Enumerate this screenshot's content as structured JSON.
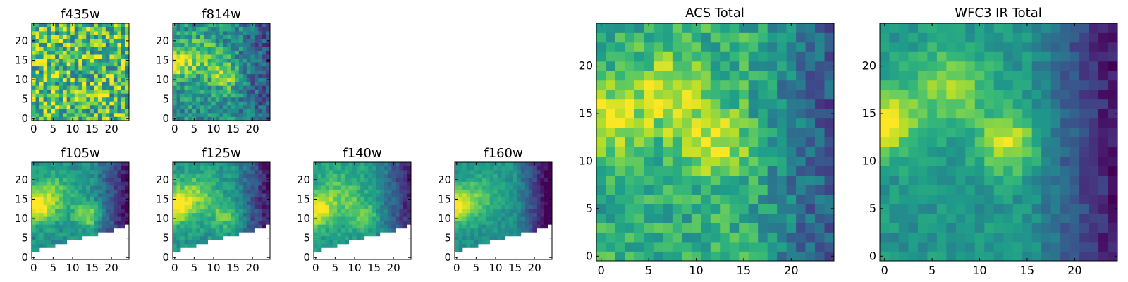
{
  "chart_data": [
    {
      "type": "heatmap",
      "title": "f435w",
      "size": 25,
      "xticks": [
        0,
        5,
        10,
        15,
        20
      ],
      "yticks": [
        0,
        5,
        10,
        15,
        20
      ],
      "xlim": [
        -0.5,
        24.5
      ],
      "ylim": [
        -0.5,
        24.5
      ],
      "colormap": "viridis",
      "masked_lower_right": false,
      "field": {
        "base": 0.7,
        "noise": 0.34,
        "blobs": [],
        "edge_drop": 0.0
      }
    },
    {
      "type": "heatmap",
      "title": "f814w",
      "size": 25,
      "xticks": [
        0,
        5,
        10,
        15,
        20
      ],
      "yticks": [
        0,
        5,
        10,
        15,
        20
      ],
      "xlim": [
        -0.5,
        24.5
      ],
      "ylim": [
        -0.5,
        24.5
      ],
      "colormap": "viridis",
      "masked_lower_right": false,
      "field": {
        "base": 0.5,
        "noise": 0.2,
        "blobs": [
          {
            "x": 0,
            "y": 14,
            "a": 0.45,
            "s": 2.6
          },
          {
            "x": 6,
            "y": 16,
            "a": 0.3,
            "s": 3.5
          },
          {
            "x": 13,
            "y": 11,
            "a": 0.35,
            "s": 2.5
          }
        ],
        "edge_drop": 0.25
      }
    },
    {
      "type": "heatmap",
      "title": "f105w",
      "size": 25,
      "xticks": [
        0,
        5,
        10,
        15,
        20
      ],
      "yticks": [
        0,
        5,
        10,
        15,
        20
      ],
      "xlim": [
        -0.5,
        24.5
      ],
      "ylim": [
        -0.5,
        24.5
      ],
      "colormap": "viridis",
      "masked_lower_right": true,
      "field": {
        "base": 0.5,
        "noise": 0.1,
        "blobs": [
          {
            "x": 0,
            "y": 13,
            "a": 0.5,
            "s": 2.8
          },
          {
            "x": 5,
            "y": 16,
            "a": 0.28,
            "s": 4.0
          },
          {
            "x": 14,
            "y": 11,
            "a": 0.35,
            "s": 2.2
          }
        ],
        "edge_drop": 0.45
      }
    },
    {
      "type": "heatmap",
      "title": "f125w",
      "size": 25,
      "xticks": [
        0,
        5,
        10,
        15,
        20
      ],
      "yticks": [
        0,
        5,
        10,
        15,
        20
      ],
      "xlim": [
        -0.5,
        24.5
      ],
      "ylim": [
        -0.5,
        24.5
      ],
      "colormap": "viridis",
      "masked_lower_right": true,
      "field": {
        "base": 0.52,
        "noise": 0.1,
        "blobs": [
          {
            "x": 0,
            "y": 13,
            "a": 0.48,
            "s": 2.8
          },
          {
            "x": 5,
            "y": 16,
            "a": 0.28,
            "s": 4.0
          },
          {
            "x": 13,
            "y": 11,
            "a": 0.22,
            "s": 2.5
          }
        ],
        "edge_drop": 0.45
      }
    },
    {
      "type": "heatmap",
      "title": "f140w",
      "size": 25,
      "xticks": [
        0,
        5,
        10,
        15,
        20
      ],
      "yticks": [
        0,
        5,
        10,
        15,
        20
      ],
      "xlim": [
        -0.5,
        24.5
      ],
      "ylim": [
        -0.5,
        24.5
      ],
      "colormap": "viridis",
      "masked_lower_right": true,
      "field": {
        "base": 0.55,
        "noise": 0.09,
        "blobs": [
          {
            "x": 0,
            "y": 12,
            "a": 0.45,
            "s": 2.8
          },
          {
            "x": 6,
            "y": 16,
            "a": 0.22,
            "s": 4.0
          },
          {
            "x": 12,
            "y": 11,
            "a": 0.2,
            "s": 2.5
          }
        ],
        "edge_drop": 0.45
      }
    },
    {
      "type": "heatmap",
      "title": "f160w",
      "size": 25,
      "xticks": [
        0,
        5,
        10,
        15,
        20
      ],
      "yticks": [
        0,
        5,
        10,
        15,
        20
      ],
      "xlim": [
        -0.5,
        24.5
      ],
      "ylim": [
        -0.5,
        24.5
      ],
      "colormap": "viridis",
      "masked_lower_right": true,
      "field": {
        "base": 0.5,
        "noise": 0.08,
        "blobs": [
          {
            "x": 0,
            "y": 13,
            "a": 0.5,
            "s": 3.0
          },
          {
            "x": 6,
            "y": 16,
            "a": 0.22,
            "s": 4.0
          }
        ],
        "edge_drop": 0.55
      }
    },
    {
      "type": "heatmap",
      "title": "ACS Total",
      "size": 25,
      "xticks": [
        0,
        5,
        10,
        15,
        20
      ],
      "yticks": [
        0,
        5,
        10,
        15,
        20
      ],
      "xlim": [
        -0.5,
        24.5
      ],
      "ylim": [
        -0.5,
        24.5
      ],
      "colormap": "viridis",
      "masked_lower_right": false,
      "field": {
        "base": 0.62,
        "noise": 0.16,
        "blobs": [
          {
            "x": 0,
            "y": 14,
            "a": 0.35,
            "s": 2.5
          },
          {
            "x": 7,
            "y": 17,
            "a": 0.3,
            "s": 3.0
          },
          {
            "x": 12,
            "y": 12,
            "a": 0.3,
            "s": 2.5
          }
        ],
        "edge_drop": 0.35
      }
    },
    {
      "type": "heatmap",
      "title": "WFC3 IR Total",
      "size": 25,
      "xticks": [
        0,
        5,
        10,
        15,
        20
      ],
      "yticks": [
        0,
        5,
        10,
        15,
        20
      ],
      "xlim": [
        -0.5,
        24.5
      ],
      "ylim": [
        -0.5,
        24.5
      ],
      "colormap": "viridis",
      "masked_lower_right": false,
      "field": {
        "base": 0.52,
        "noise": 0.09,
        "blobs": [
          {
            "x": 0,
            "y": 14,
            "a": 0.45,
            "s": 2.5
          },
          {
            "x": 7,
            "y": 18,
            "a": 0.3,
            "s": 3.0
          },
          {
            "x": 13,
            "y": 12,
            "a": 0.4,
            "s": 2.2
          }
        ],
        "edge_drop": 0.45
      }
    }
  ]
}
